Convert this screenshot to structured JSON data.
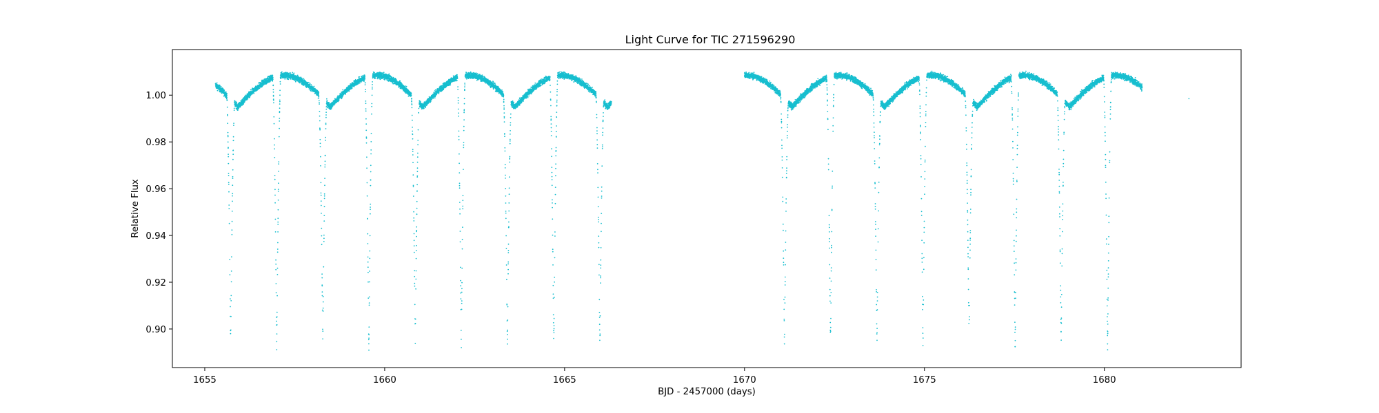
{
  "chart_data": {
    "type": "scatter",
    "title": "Light Curve for TIC 271596290",
    "xlabel": "BJD - 2457000 (days)",
    "ylabel": "Relative Flux",
    "xlim": [
      1654.1,
      1683.8
    ],
    "ylim": [
      0.8835,
      1.0195
    ],
    "x_ticks": [
      1655,
      1660,
      1665,
      1670,
      1675,
      1680
    ],
    "x_tick_labels": [
      "1655",
      "1660",
      "1665",
      "1670",
      "1675",
      "1680"
    ],
    "y_ticks": [
      0.9,
      0.92,
      0.94,
      0.96,
      0.98,
      1.0
    ],
    "y_tick_labels": [
      "0.90",
      "0.92",
      "0.94",
      "0.96",
      "0.98",
      "1.00"
    ],
    "grid": false,
    "legend": "none",
    "marker_color": "#17becf",
    "series": [
      {
        "segments": [
          {
            "x_start": 1655.3,
            "x_end": 1666.3
          },
          {
            "x_start": 1670.0,
            "x_end": 1681.05
          }
        ],
        "period_days": 2.568,
        "phase_reference": 1655.92,
        "primary_eclipse_times": [
          1655.72,
          1657.0,
          1658.28,
          1659.56,
          1660.85,
          1662.13,
          1663.41,
          1664.7,
          1665.98,
          1671.11,
          1672.39,
          1673.68,
          1674.96,
          1676.24,
          1677.52,
          1678.8,
          1680.09
        ],
        "eclipse_min_flux": [
          0.893,
          0.891,
          0.894,
          0.891,
          0.893,
          0.891,
          0.893,
          0.891,
          0.892,
          0.892,
          0.891,
          0.893,
          0.891,
          0.893,
          0.891,
          0.894,
          0.891
        ],
        "out_of_eclipse_min_flux": 0.995,
        "out_of_eclipse_max_flux": 1.0085,
        "isolated_points": [
          {
            "x": 1682.35,
            "y": 0.9985
          }
        ]
      }
    ]
  }
}
